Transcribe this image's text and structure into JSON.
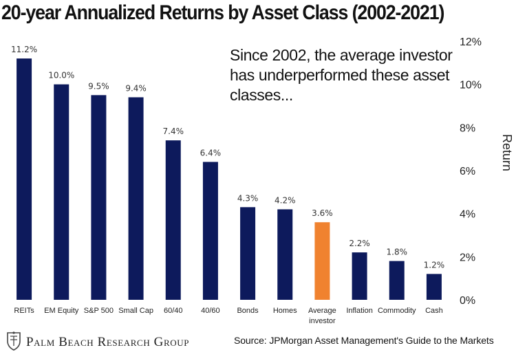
{
  "chart_data": {
    "type": "bar",
    "title": "20-year Annualized Returns by Asset Class (2002-2021)",
    "ylabel": "Return",
    "ylim": [
      0,
      12
    ],
    "yticks": [
      "0%",
      "2%",
      "4%",
      "6%",
      "8%",
      "10%",
      "12%"
    ],
    "y_axis_position": "right",
    "grid": false,
    "categories": [
      "REITs",
      "EM Equity",
      "S&P 500",
      "Small Cap",
      "60/40",
      "40/60",
      "Bonds",
      "Homes",
      "Average investor",
      "Inflation",
      "Commodity",
      "Cash"
    ],
    "category_lines": [
      [
        "REITs"
      ],
      [
        "EM Equity"
      ],
      [
        "S&P 500"
      ],
      [
        "Small Cap"
      ],
      [
        "60/40"
      ],
      [
        "40/60"
      ],
      [
        "Bonds"
      ],
      [
        "Homes"
      ],
      [
        "Average",
        "investor"
      ],
      [
        "Inflation"
      ],
      [
        "Commodity"
      ],
      [
        "Cash"
      ]
    ],
    "values": [
      11.2,
      10.0,
      9.5,
      9.4,
      7.4,
      6.4,
      4.3,
      4.2,
      3.6,
      2.2,
      1.8,
      1.2
    ],
    "value_labels": [
      "11.2%",
      "10.0%",
      "9.5%",
      "9.4%",
      "7.4%",
      "6.4%",
      "4.3%",
      "4.2%",
      "3.6%",
      "2.2%",
      "1.8%",
      "1.2%"
    ],
    "colors": {
      "default_bar": "#0d1a5c",
      "highlight_bar": "#f0822f",
      "highlight_category": "Average investor"
    },
    "annotation_lines": [
      "Since 2002, the average investor",
      "has underperformed these asset",
      "classes..."
    ]
  },
  "footer": {
    "logo_text": "Palm Beach Research Group",
    "logo_icon": "crest-icon",
    "source": "Source: JPMorgan Asset Management's Guide to the Markets"
  }
}
